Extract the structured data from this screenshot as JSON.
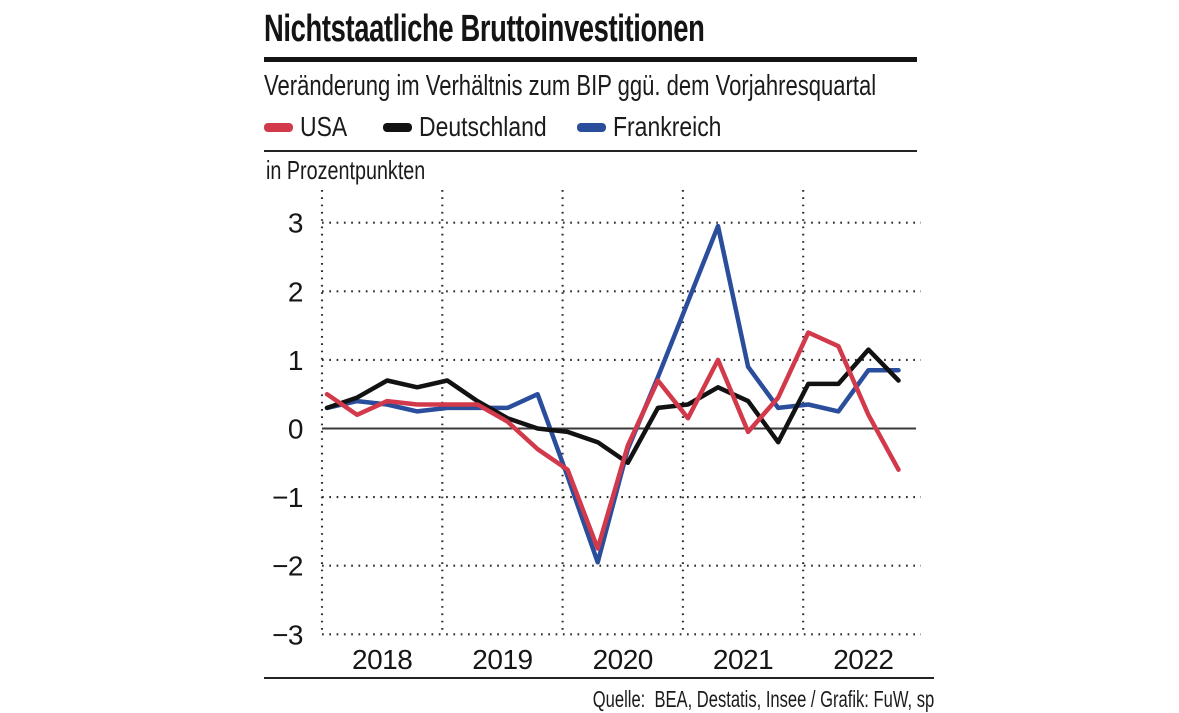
{
  "header": {
    "title": "Nichtstaatliche Bruttoinvestitionen",
    "subtitle": "Veränderung im Verhältnis zum BIP ggü. dem Vorjahresquartal"
  },
  "legend": [
    {
      "label": "USA",
      "color": "#d23a4b"
    },
    {
      "label": "Deutschland",
      "color": "#121212"
    },
    {
      "label": "Frankreich",
      "color": "#2a4d9c"
    }
  ],
  "chart_data": {
    "type": "line",
    "unit_note": "in Prozentpunkten",
    "x_quarters": [
      "2018Q1",
      "2018Q2",
      "2018Q3",
      "2018Q4",
      "2019Q1",
      "2019Q2",
      "2019Q3",
      "2019Q4",
      "2020Q1",
      "2020Q2",
      "2020Q3",
      "2020Q4",
      "2021Q1",
      "2021Q2",
      "2021Q3",
      "2021Q4",
      "2022Q1",
      "2022Q2",
      "2022Q3",
      "2022Q4"
    ],
    "series": [
      {
        "name": "USA",
        "color": "#d23a4b",
        "values": [
          0.5,
          0.2,
          0.4,
          0.35,
          0.35,
          0.35,
          0.1,
          -0.3,
          -0.6,
          -1.75,
          -0.25,
          0.7,
          0.15,
          1.0,
          -0.05,
          0.45,
          1.4,
          1.2,
          0.2,
          -0.6
        ]
      },
      {
        "name": "Deutschland",
        "color": "#121212",
        "values": [
          0.3,
          0.45,
          0.7,
          0.6,
          0.7,
          0.4,
          0.15,
          0.0,
          -0.05,
          -0.2,
          -0.5,
          0.3,
          0.35,
          0.6,
          0.4,
          -0.2,
          0.65,
          0.65,
          1.15,
          0.7
        ]
      },
      {
        "name": "Frankreich",
        "color": "#2a4d9c",
        "values": [
          0.3,
          0.4,
          0.35,
          0.25,
          0.3,
          0.3,
          0.3,
          0.5,
          -0.7,
          -1.95,
          -0.3,
          0.75,
          1.85,
          2.95,
          0.9,
          0.3,
          0.35,
          0.25,
          0.85,
          0.85
        ]
      }
    ],
    "yticks": [
      3,
      2,
      1,
      0,
      -1,
      -2,
      -3
    ],
    "ylim": [
      -3,
      3
    ],
    "xtick_years": [
      "2018",
      "2019",
      "2020",
      "2021",
      "2022"
    ],
    "grid": "dotted",
    "legend_position": "top"
  },
  "footer": {
    "source": "Quelle:  BEA, Destatis, Insee / Grafik: FuW, sp"
  }
}
